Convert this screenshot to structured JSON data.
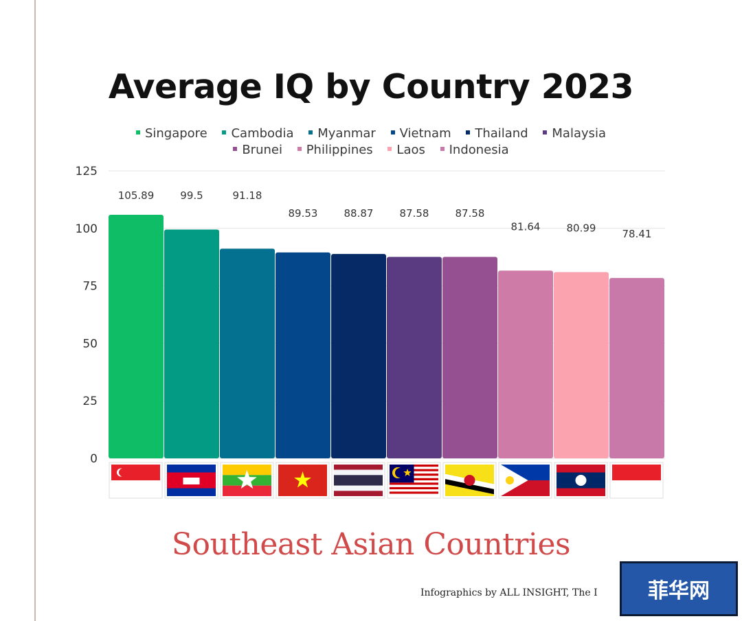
{
  "title": "Average IQ by Country 2023",
  "subtitle": "Southeast Asian Countries",
  "credit": "Infographics by ALL INSIGHT, The I",
  "watermark": "菲华网",
  "chart_data": {
    "type": "bar",
    "title": "Average IQ by Country 2023",
    "xlabel": "",
    "ylabel": "",
    "ylim": [
      0,
      125
    ],
    "yticks": [
      0,
      25,
      50,
      75,
      100,
      125
    ],
    "grid": true,
    "legend_position": "top",
    "categories": [
      "Singapore",
      "Cambodia",
      "Myanmar",
      "Vietnam",
      "Thailand",
      "Malaysia",
      "Brunei",
      "Philippines",
      "Laos",
      "Indonesia"
    ],
    "values": [
      105.89,
      99.5,
      91.18,
      89.53,
      88.87,
      87.58,
      87.58,
      81.64,
      80.99,
      78.41
    ],
    "value_labels": [
      "105.89",
      "99.5",
      "91.18",
      "89.53",
      "88.87",
      "87.58",
      "87.58",
      "81.64",
      "80.99",
      "78.41"
    ],
    "colors": [
      "#0ebd66",
      "#049b85",
      "#03718f",
      "#04478a",
      "#052a66",
      "#5a3b82",
      "#945091",
      "#cf7ba8",
      "#fba4b0",
      "#c878a9"
    ],
    "legend": [
      {
        "name": "Singapore",
        "color": "#0ebd66"
      },
      {
        "name": "Cambodia",
        "color": "#049b85"
      },
      {
        "name": "Myanmar",
        "color": "#03718f"
      },
      {
        "name": "Vietnam",
        "color": "#04478a"
      },
      {
        "name": "Thailand",
        "color": "#052a66"
      },
      {
        "name": "Malaysia",
        "color": "#5a3b82"
      },
      {
        "name": "Brunei",
        "color": "#945091"
      },
      {
        "name": "Philippines",
        "color": "#cf7ba8"
      },
      {
        "name": "Laos",
        "color": "#fba4b0"
      },
      {
        "name": "Indonesia",
        "color": "#c878a9"
      }
    ],
    "flags": [
      "singapore-flag-icon",
      "cambodia-flag-icon",
      "myanmar-flag-icon",
      "vietnam-flag-icon",
      "thailand-flag-icon",
      "malaysia-flag-icon",
      "brunei-flag-icon",
      "philippines-flag-icon",
      "laos-flag-icon",
      "indonesia-flag-icon"
    ]
  }
}
